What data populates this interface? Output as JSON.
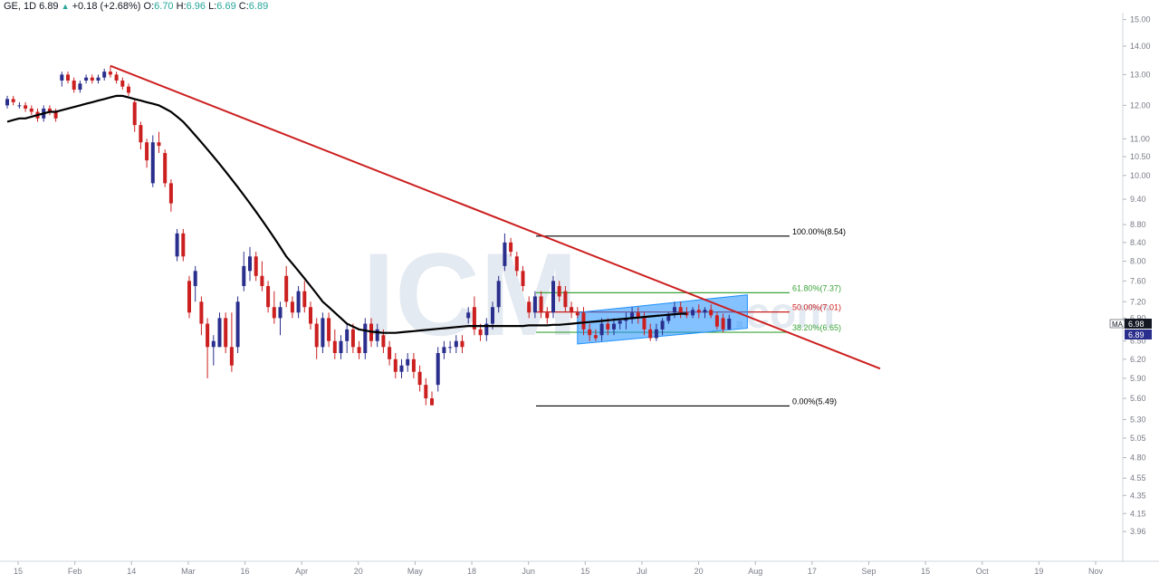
{
  "header": {
    "symbol": "GE, 1D",
    "last": "6.89",
    "change": "+0.18 (+2.68%)",
    "open_label": "O:",
    "open": "6.70",
    "high_label": "H:",
    "high": "6.96",
    "low_label": "L:",
    "low": "6.69",
    "close_label": "C:",
    "close": "6.89",
    "up_icon": "triangle-up-icon"
  },
  "watermark": {
    "main": "ICM",
    "suffix": ".com"
  },
  "price_badges": {
    "ma_label": "MA",
    "ma_value": "6.98",
    "ma_color": "#131722",
    "last_value": "6.89",
    "last_color": "#2a2e8c"
  },
  "colors": {
    "up": "#2a2e8c",
    "down": "#cc1f1f",
    "ma": "#000000",
    "trendline": "#cc1f1f",
    "channel": "#1e90ff",
    "fib_100": "#000000",
    "fib_618": "#3aa33a",
    "fib_50": "#cc1f1f",
    "fib_382": "#3aa33a",
    "fib_0": "#000000"
  },
  "chart_data": {
    "type": "candlestick",
    "title": "GE, 1D",
    "y_scale": "log",
    "ylim": [
      3.7,
      15.2
    ],
    "y_ticks": [
      "15.00",
      "14.00",
      "13.00",
      "12.00",
      "11.00",
      "10.50",
      "10.00",
      "9.40",
      "8.80",
      "8.40",
      "8.00",
      "7.60",
      "7.20",
      "6.90",
      "6.50",
      "6.20",
      "5.90",
      "5.60",
      "5.30",
      "5.05",
      "4.80",
      "4.55",
      "4.35",
      "4.15",
      "3.96"
    ],
    "x_ticks": [
      "15",
      "Feb",
      "14",
      "Mar",
      "16",
      "Apr",
      "20",
      "May",
      "18",
      "Jun",
      "15",
      "Jul",
      "20",
      "Aug",
      "17",
      "Sep",
      "15",
      "Oct",
      "19",
      "Nov"
    ],
    "candles": [
      {
        "o": 12.0,
        "h": 12.3,
        "l": 11.9,
        "c": 12.2
      },
      {
        "o": 12.2,
        "h": 12.3,
        "l": 12.0,
        "c": 12.1
      },
      {
        "o": 12.0,
        "h": 12.1,
        "l": 11.9,
        "c": 12.0
      },
      {
        "o": 12.0,
        "h": 12.1,
        "l": 11.8,
        "c": 11.9
      },
      {
        "o": 11.9,
        "h": 12.0,
        "l": 11.7,
        "c": 11.8
      },
      {
        "o": 11.8,
        "h": 11.9,
        "l": 11.5,
        "c": 11.6
      },
      {
        "o": 11.6,
        "h": 12.0,
        "l": 11.5,
        "c": 11.9
      },
      {
        "o": 11.9,
        "h": 12.0,
        "l": 11.7,
        "c": 11.8
      },
      {
        "o": 11.8,
        "h": 11.9,
        "l": 11.5,
        "c": 11.6
      },
      {
        "o": 12.8,
        "h": 13.1,
        "l": 12.6,
        "c": 13.0
      },
      {
        "o": 13.0,
        "h": 13.1,
        "l": 12.7,
        "c": 12.8
      },
      {
        "o": 12.8,
        "h": 12.9,
        "l": 12.4,
        "c": 12.5
      },
      {
        "o": 12.5,
        "h": 12.8,
        "l": 12.4,
        "c": 12.7
      },
      {
        "o": 12.8,
        "h": 13.0,
        "l": 12.7,
        "c": 12.9
      },
      {
        "o": 12.9,
        "h": 13.0,
        "l": 12.7,
        "c": 12.8
      },
      {
        "o": 12.8,
        "h": 13.0,
        "l": 12.7,
        "c": 12.9
      },
      {
        "o": 12.9,
        "h": 13.2,
        "l": 12.8,
        "c": 13.1
      },
      {
        "o": 13.1,
        "h": 13.3,
        "l": 12.9,
        "c": 13.0
      },
      {
        "o": 13.0,
        "h": 13.1,
        "l": 12.7,
        "c": 12.8
      },
      {
        "o": 12.8,
        "h": 12.9,
        "l": 12.5,
        "c": 12.6
      },
      {
        "o": 12.6,
        "h": 12.7,
        "l": 12.3,
        "c": 12.4
      },
      {
        "o": 12.1,
        "h": 12.2,
        "l": 11.2,
        "c": 11.4
      },
      {
        "o": 11.4,
        "h": 11.5,
        "l": 10.7,
        "c": 10.9
      },
      {
        "o": 10.9,
        "h": 11.0,
        "l": 10.2,
        "c": 10.4
      },
      {
        "o": 9.8,
        "h": 11.1,
        "l": 9.7,
        "c": 10.9
      },
      {
        "o": 10.9,
        "h": 11.2,
        "l": 10.6,
        "c": 10.8
      },
      {
        "o": 10.6,
        "h": 10.7,
        "l": 9.7,
        "c": 9.8
      },
      {
        "o": 9.8,
        "h": 9.9,
        "l": 9.1,
        "c": 9.3
      },
      {
        "o": 8.1,
        "h": 8.7,
        "l": 8.0,
        "c": 8.6
      },
      {
        "o": 8.6,
        "h": 8.7,
        "l": 8.0,
        "c": 8.1
      },
      {
        "o": 7.6,
        "h": 7.7,
        "l": 6.9,
        "c": 7.0
      },
      {
        "o": 7.5,
        "h": 7.9,
        "l": 7.2,
        "c": 7.8
      },
      {
        "o": 7.2,
        "h": 7.3,
        "l": 6.6,
        "c": 6.8
      },
      {
        "o": 6.8,
        "h": 6.9,
        "l": 5.9,
        "c": 6.4
      },
      {
        "o": 6.4,
        "h": 6.6,
        "l": 6.1,
        "c": 6.5
      },
      {
        "o": 6.4,
        "h": 7.0,
        "l": 6.4,
        "c": 6.9
      },
      {
        "o": 6.9,
        "h": 7.0,
        "l": 6.3,
        "c": 6.4
      },
      {
        "o": 6.4,
        "h": 7.0,
        "l": 6.0,
        "c": 6.1
      },
      {
        "o": 6.4,
        "h": 7.3,
        "l": 6.3,
        "c": 7.2
      },
      {
        "o": 7.5,
        "h": 8.2,
        "l": 7.4,
        "c": 7.9
      },
      {
        "o": 7.8,
        "h": 8.3,
        "l": 7.6,
        "c": 8.1
      },
      {
        "o": 8.1,
        "h": 8.2,
        "l": 7.6,
        "c": 7.7
      },
      {
        "o": 7.7,
        "h": 8.0,
        "l": 7.4,
        "c": 7.5
      },
      {
        "o": 7.5,
        "h": 7.6,
        "l": 7.0,
        "c": 7.1
      },
      {
        "o": 7.1,
        "h": 7.4,
        "l": 6.8,
        "c": 6.9
      },
      {
        "o": 6.9,
        "h": 7.2,
        "l": 6.6,
        "c": 7.1
      },
      {
        "o": 7.7,
        "h": 7.9,
        "l": 7.1,
        "c": 7.2
      },
      {
        "o": 7.2,
        "h": 7.3,
        "l": 6.9,
        "c": 7.0
      },
      {
        "o": 7.0,
        "h": 7.5,
        "l": 6.9,
        "c": 7.4
      },
      {
        "o": 7.4,
        "h": 7.6,
        "l": 7.0,
        "c": 7.1
      },
      {
        "o": 7.1,
        "h": 7.2,
        "l": 6.7,
        "c": 6.8
      },
      {
        "o": 6.8,
        "h": 6.9,
        "l": 6.2,
        "c": 6.4
      },
      {
        "o": 6.4,
        "h": 7.0,
        "l": 6.3,
        "c": 6.9
      },
      {
        "o": 6.9,
        "h": 7.0,
        "l": 6.4,
        "c": 6.5
      },
      {
        "o": 6.5,
        "h": 6.7,
        "l": 6.2,
        "c": 6.3
      },
      {
        "o": 6.3,
        "h": 6.6,
        "l": 6.2,
        "c": 6.5
      },
      {
        "o": 6.5,
        "h": 6.8,
        "l": 6.3,
        "c": 6.7
      },
      {
        "o": 6.7,
        "h": 6.8,
        "l": 6.3,
        "c": 6.4
      },
      {
        "o": 6.4,
        "h": 6.5,
        "l": 6.2,
        "c": 6.3
      },
      {
        "o": 6.3,
        "h": 6.9,
        "l": 6.2,
        "c": 6.8
      },
      {
        "o": 6.8,
        "h": 6.9,
        "l": 6.4,
        "c": 6.5
      },
      {
        "o": 6.5,
        "h": 6.8,
        "l": 6.4,
        "c": 6.7
      },
      {
        "o": 6.6,
        "h": 6.7,
        "l": 6.3,
        "c": 6.4
      },
      {
        "o": 6.4,
        "h": 6.5,
        "l": 6.1,
        "c": 6.2
      },
      {
        "o": 6.2,
        "h": 6.3,
        "l": 5.9,
        "c": 6.0
      },
      {
        "o": 6.0,
        "h": 6.2,
        "l": 5.9,
        "c": 6.1
      },
      {
        "o": 6.1,
        "h": 6.3,
        "l": 6.0,
        "c": 6.2
      },
      {
        "o": 6.2,
        "h": 6.3,
        "l": 5.9,
        "c": 6.0
      },
      {
        "o": 6.0,
        "h": 6.1,
        "l": 5.7,
        "c": 5.8
      },
      {
        "o": 5.8,
        "h": 5.9,
        "l": 5.5,
        "c": 5.6
      },
      {
        "o": 5.6,
        "h": 5.7,
        "l": 5.5,
        "c": 5.5
      },
      {
        "o": 5.8,
        "h": 6.4,
        "l": 5.7,
        "c": 6.3
      },
      {
        "o": 6.3,
        "h": 6.5,
        "l": 6.2,
        "c": 6.4
      },
      {
        "o": 6.4,
        "h": 6.5,
        "l": 6.3,
        "c": 6.4
      },
      {
        "o": 6.4,
        "h": 6.6,
        "l": 6.3,
        "c": 6.5
      },
      {
        "o": 6.5,
        "h": 6.6,
        "l": 6.3,
        "c": 6.4
      },
      {
        "o": 6.9,
        "h": 7.1,
        "l": 6.8,
        "c": 7.0
      },
      {
        "o": 7.1,
        "h": 7.3,
        "l": 6.6,
        "c": 6.7
      },
      {
        "o": 6.7,
        "h": 6.8,
        "l": 6.5,
        "c": 6.6
      },
      {
        "o": 6.6,
        "h": 6.9,
        "l": 6.5,
        "c": 6.8
      },
      {
        "o": 6.8,
        "h": 7.2,
        "l": 6.7,
        "c": 7.1
      },
      {
        "o": 7.1,
        "h": 7.7,
        "l": 7.0,
        "c": 7.6
      },
      {
        "o": 7.9,
        "h": 8.6,
        "l": 7.8,
        "c": 8.4
      },
      {
        "o": 8.4,
        "h": 8.5,
        "l": 8.1,
        "c": 8.2
      },
      {
        "o": 8.1,
        "h": 8.2,
        "l": 7.7,
        "c": 7.8
      },
      {
        "o": 7.8,
        "h": 7.9,
        "l": 7.4,
        "c": 7.5
      },
      {
        "o": 7.2,
        "h": 7.3,
        "l": 6.9,
        "c": 7.0
      },
      {
        "o": 7.0,
        "h": 7.4,
        "l": 6.9,
        "c": 7.3
      },
      {
        "o": 7.3,
        "h": 7.4,
        "l": 6.9,
        "c": 7.0
      },
      {
        "o": 7.0,
        "h": 7.1,
        "l": 6.8,
        "c": 6.9
      },
      {
        "o": 7.0,
        "h": 7.7,
        "l": 6.9,
        "c": 7.6
      },
      {
        "o": 7.5,
        "h": 7.6,
        "l": 7.2,
        "c": 7.3
      },
      {
        "o": 7.4,
        "h": 7.5,
        "l": 7.0,
        "c": 7.1
      },
      {
        "o": 7.1,
        "h": 7.2,
        "l": 6.9,
        "c": 7.0
      },
      {
        "o": 7.0,
        "h": 7.1,
        "l": 6.9,
        "c": 6.95
      },
      {
        "o": 7.0,
        "h": 7.1,
        "l": 6.6,
        "c": 6.7
      },
      {
        "o": 6.7,
        "h": 6.8,
        "l": 6.5,
        "c": 6.6
      },
      {
        "o": 6.6,
        "h": 6.7,
        "l": 6.5,
        "c": 6.55
      },
      {
        "o": 6.6,
        "h": 6.9,
        "l": 6.5,
        "c": 6.8
      },
      {
        "o": 6.8,
        "h": 6.9,
        "l": 6.6,
        "c": 6.7
      },
      {
        "o": 6.7,
        "h": 6.9,
        "l": 6.6,
        "c": 6.8
      },
      {
        "o": 6.8,
        "h": 6.9,
        "l": 6.7,
        "c": 6.85
      },
      {
        "o": 6.85,
        "h": 7.0,
        "l": 6.7,
        "c": 6.9
      },
      {
        "o": 6.9,
        "h": 7.1,
        "l": 6.8,
        "c": 7.0
      },
      {
        "o": 7.0,
        "h": 7.1,
        "l": 6.8,
        "c": 6.9
      },
      {
        "o": 6.9,
        "h": 7.0,
        "l": 6.6,
        "c": 6.7
      },
      {
        "o": 6.7,
        "h": 6.8,
        "l": 6.5,
        "c": 6.55
      },
      {
        "o": 6.55,
        "h": 6.8,
        "l": 6.5,
        "c": 6.7
      },
      {
        "o": 6.7,
        "h": 6.9,
        "l": 6.6,
        "c": 6.85
      },
      {
        "o": 6.85,
        "h": 7.0,
        "l": 6.8,
        "c": 6.95
      },
      {
        "o": 7.0,
        "h": 7.2,
        "l": 6.9,
        "c": 7.1
      },
      {
        "o": 7.1,
        "h": 7.2,
        "l": 6.9,
        "c": 7.0
      },
      {
        "o": 7.0,
        "h": 7.1,
        "l": 6.9,
        "c": 6.95
      },
      {
        "o": 6.95,
        "h": 7.1,
        "l": 6.9,
        "c": 7.05
      },
      {
        "o": 7.05,
        "h": 7.15,
        "l": 6.9,
        "c": 7.0
      },
      {
        "o": 7.0,
        "h": 7.1,
        "l": 6.9,
        "c": 7.05
      },
      {
        "o": 7.05,
        "h": 7.15,
        "l": 6.9,
        "c": 6.95
      },
      {
        "o": 6.95,
        "h": 7.0,
        "l": 6.7,
        "c": 6.75
      },
      {
        "o": 6.9,
        "h": 6.98,
        "l": 6.65,
        "c": 6.7
      },
      {
        "o": 6.7,
        "h": 6.96,
        "l": 6.69,
        "c": 6.89
      }
    ],
    "moving_average": [
      11.5,
      11.55,
      11.6,
      11.6,
      11.65,
      11.7,
      11.75,
      11.8,
      11.8,
      11.85,
      11.9,
      11.95,
      12.0,
      12.05,
      12.1,
      12.15,
      12.2,
      12.25,
      12.3,
      12.3,
      12.25,
      12.2,
      12.15,
      12.1,
      12.05,
      12.0,
      11.9,
      11.8,
      11.65,
      11.5,
      11.3,
      11.1,
      10.9,
      10.7,
      10.5,
      10.3,
      10.1,
      9.9,
      9.7,
      9.5,
      9.3,
      9.1,
      8.9,
      8.7,
      8.5,
      8.3,
      8.1,
      7.95,
      7.8,
      7.65,
      7.5,
      7.35,
      7.2,
      7.1,
      7.0,
      6.9,
      6.8,
      6.75,
      6.7,
      6.68,
      6.66,
      6.65,
      6.64,
      6.64,
      6.64,
      6.65,
      6.66,
      6.67,
      6.68,
      6.69,
      6.7,
      6.71,
      6.72,
      6.73,
      6.74,
      6.75,
      6.76,
      6.76,
      6.76,
      6.76,
      6.76,
      6.76,
      6.76,
      6.76,
      6.76,
      6.76,
      6.77,
      6.77,
      6.77,
      6.77,
      6.78,
      6.78,
      6.79,
      6.8,
      6.81,
      6.82,
      6.83,
      6.84,
      6.85,
      6.86,
      6.87,
      6.88,
      6.89,
      6.9,
      6.91,
      6.92,
      6.93,
      6.94,
      6.95,
      6.96,
      6.97,
      6.98,
      6.98
    ],
    "fib_levels": [
      {
        "label": "100.00%(8.54)",
        "value": 8.54
      },
      {
        "label": "61.80%(7.37)",
        "value": 7.37
      },
      {
        "label": "50.00%(7.01)",
        "value": 7.01
      },
      {
        "label": "38.20%(6.65)",
        "value": 6.65
      },
      {
        "label": "0.00%(5.49)",
        "value": 5.49
      }
    ],
    "trendline": {
      "from_candle": 17,
      "from_price": 13.3,
      "to_price": 6.05
    },
    "channel": {
      "from_candle": 94,
      "to_candle": 122,
      "lower_start": 6.45,
      "lower_end": 6.72,
      "upper_start": 7.0,
      "upper_end": 7.33
    },
    "legend": "none",
    "grid": false
  }
}
